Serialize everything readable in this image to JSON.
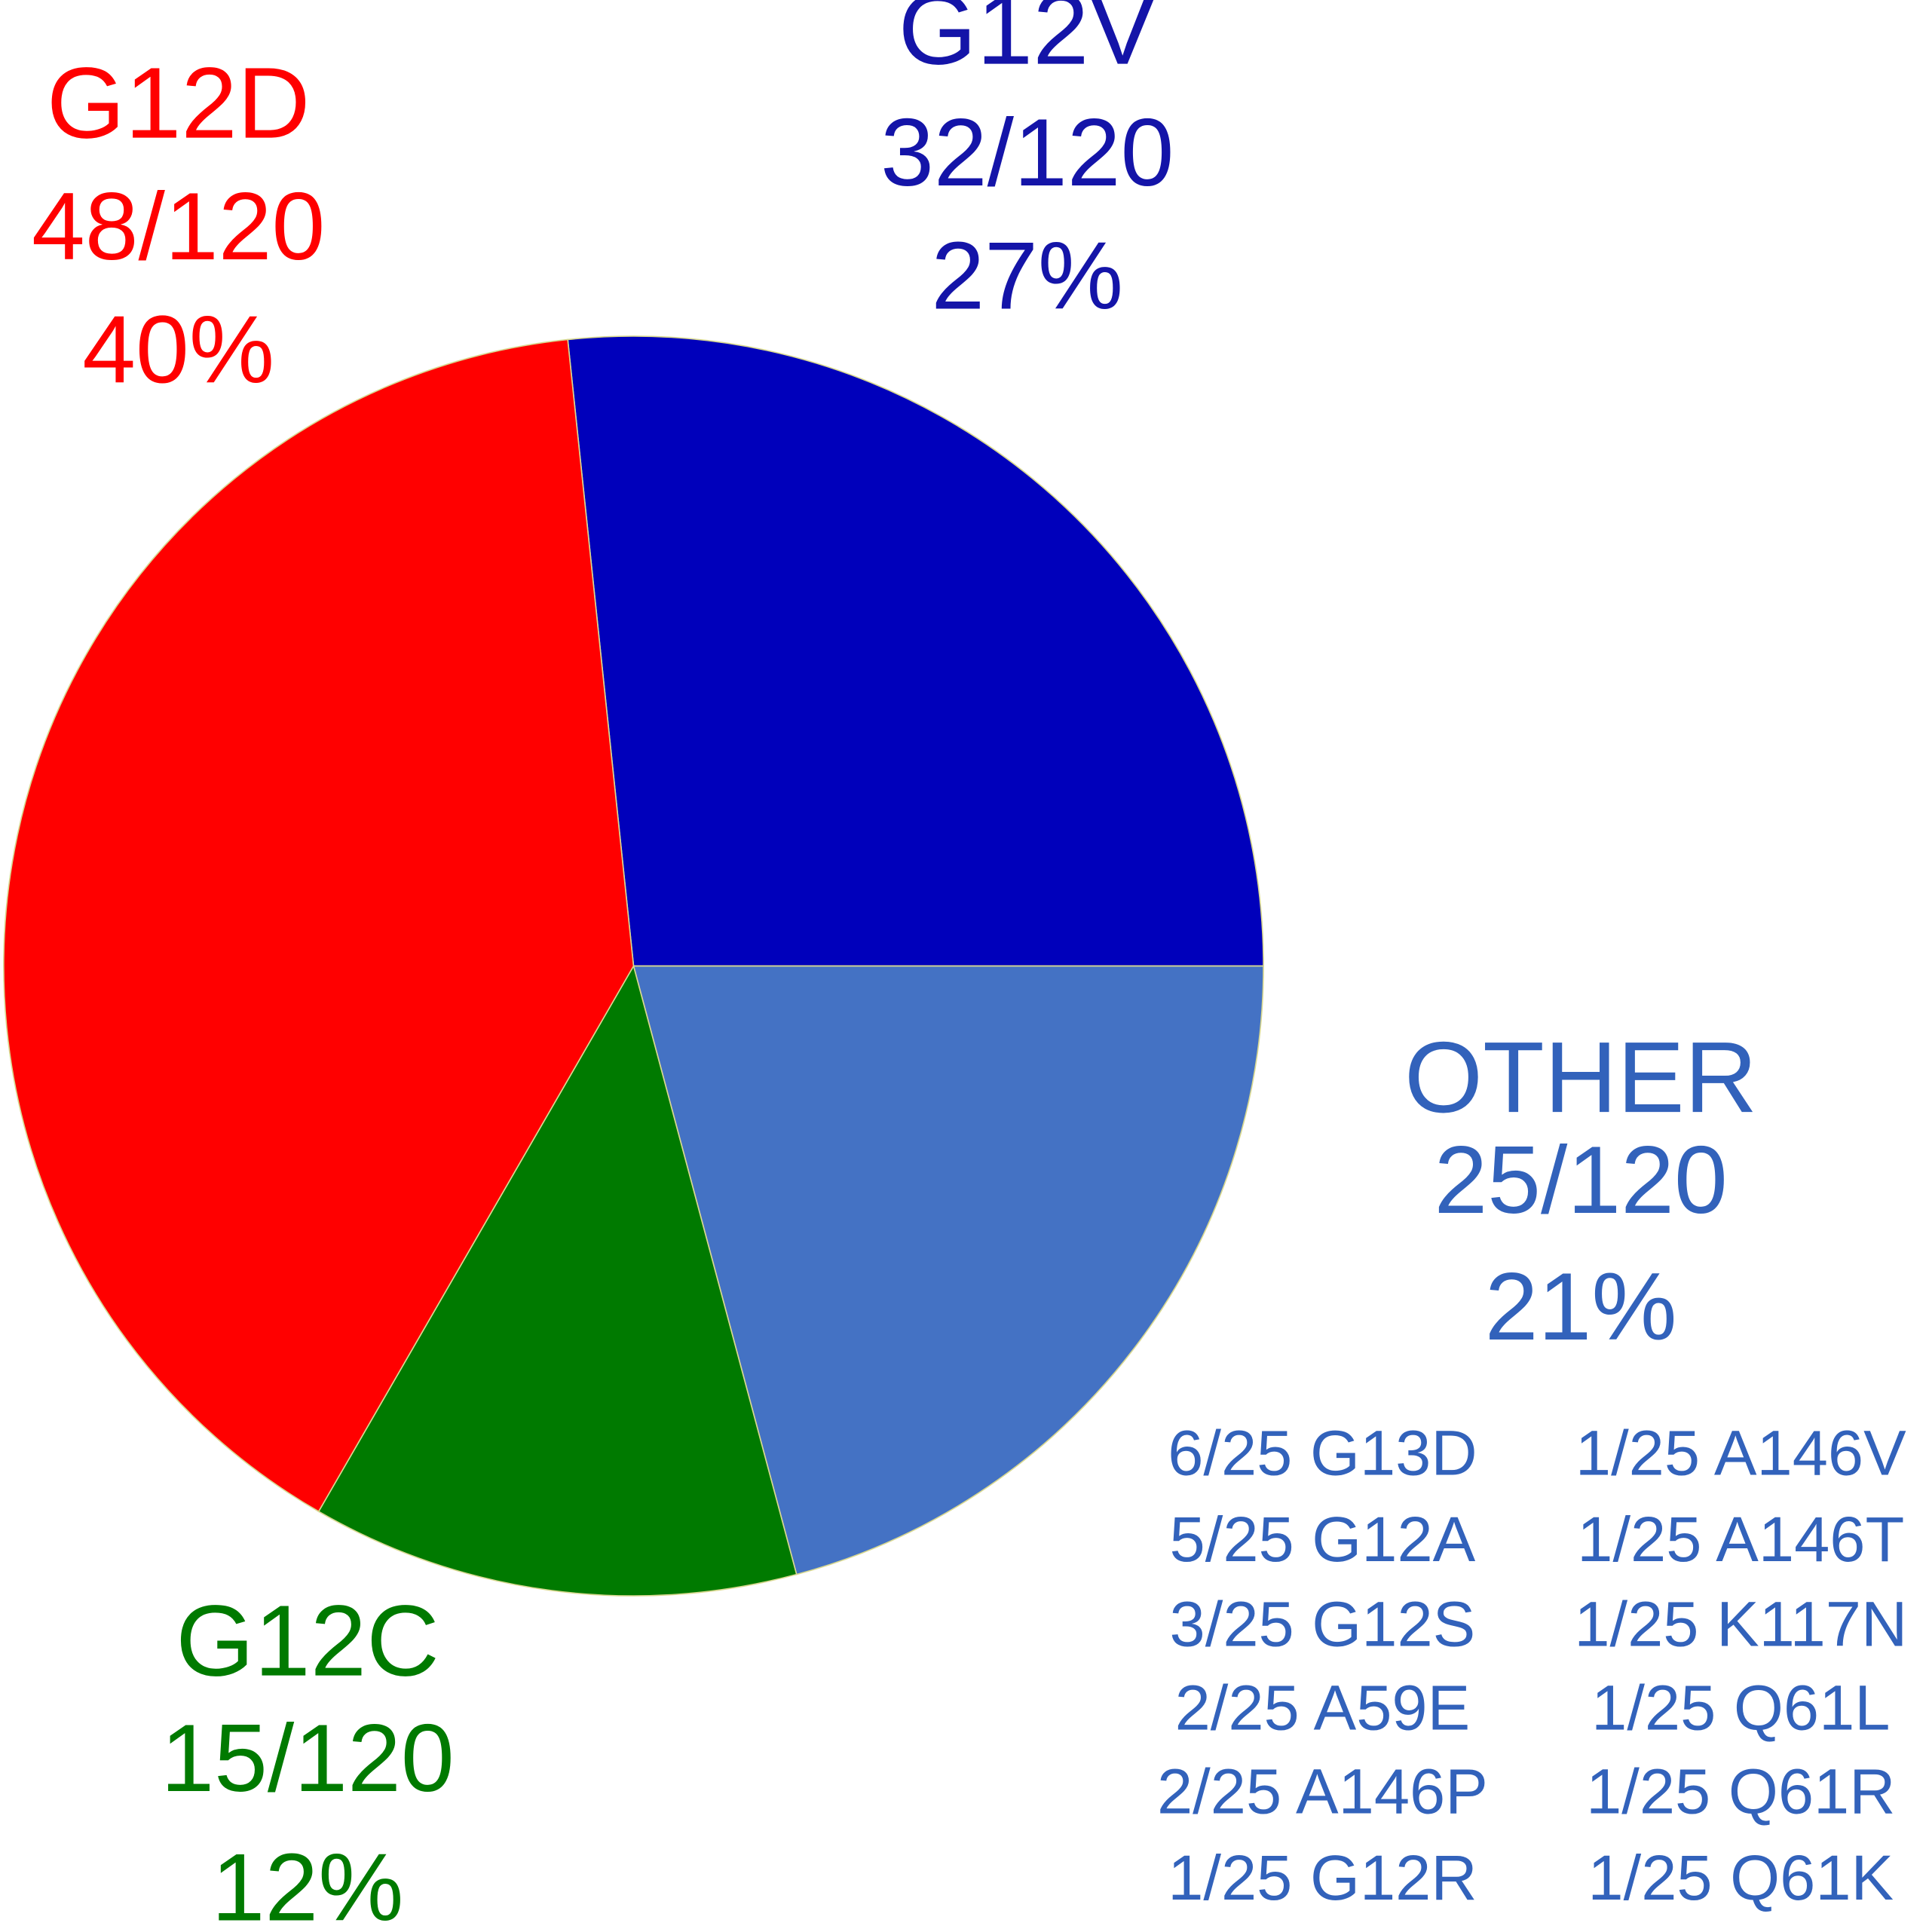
{
  "chart_data": {
    "type": "pie",
    "categories": [
      "G12V",
      "OTHER",
      "G12C",
      "G12D"
    ],
    "values": [
      32,
      25,
      15,
      48
    ],
    "value_labels": [
      "32/120",
      "25/120",
      "15/120",
      "48/120"
    ],
    "percent_labels": [
      "27%",
      "21%",
      "12%",
      "40%"
    ],
    "colors": [
      "#0000bb",
      "#4472c4",
      "#007a00",
      "#ff0000"
    ],
    "label_colors": [
      "#1414a8",
      "#3262bb",
      "#007a00",
      "#ff0000"
    ],
    "other_breakdown": [
      "6/25 G13D",
      "5/25 G12A",
      "3/25 G12S",
      "2/25 A59E",
      "2/25 A146P",
      "1/25 G12R",
      "1/25 A146V",
      "1/25 A146T",
      "1/25 K117N",
      "1/25 Q61L",
      "1/25 Q61R",
      "1/25 Q61K"
    ]
  }
}
